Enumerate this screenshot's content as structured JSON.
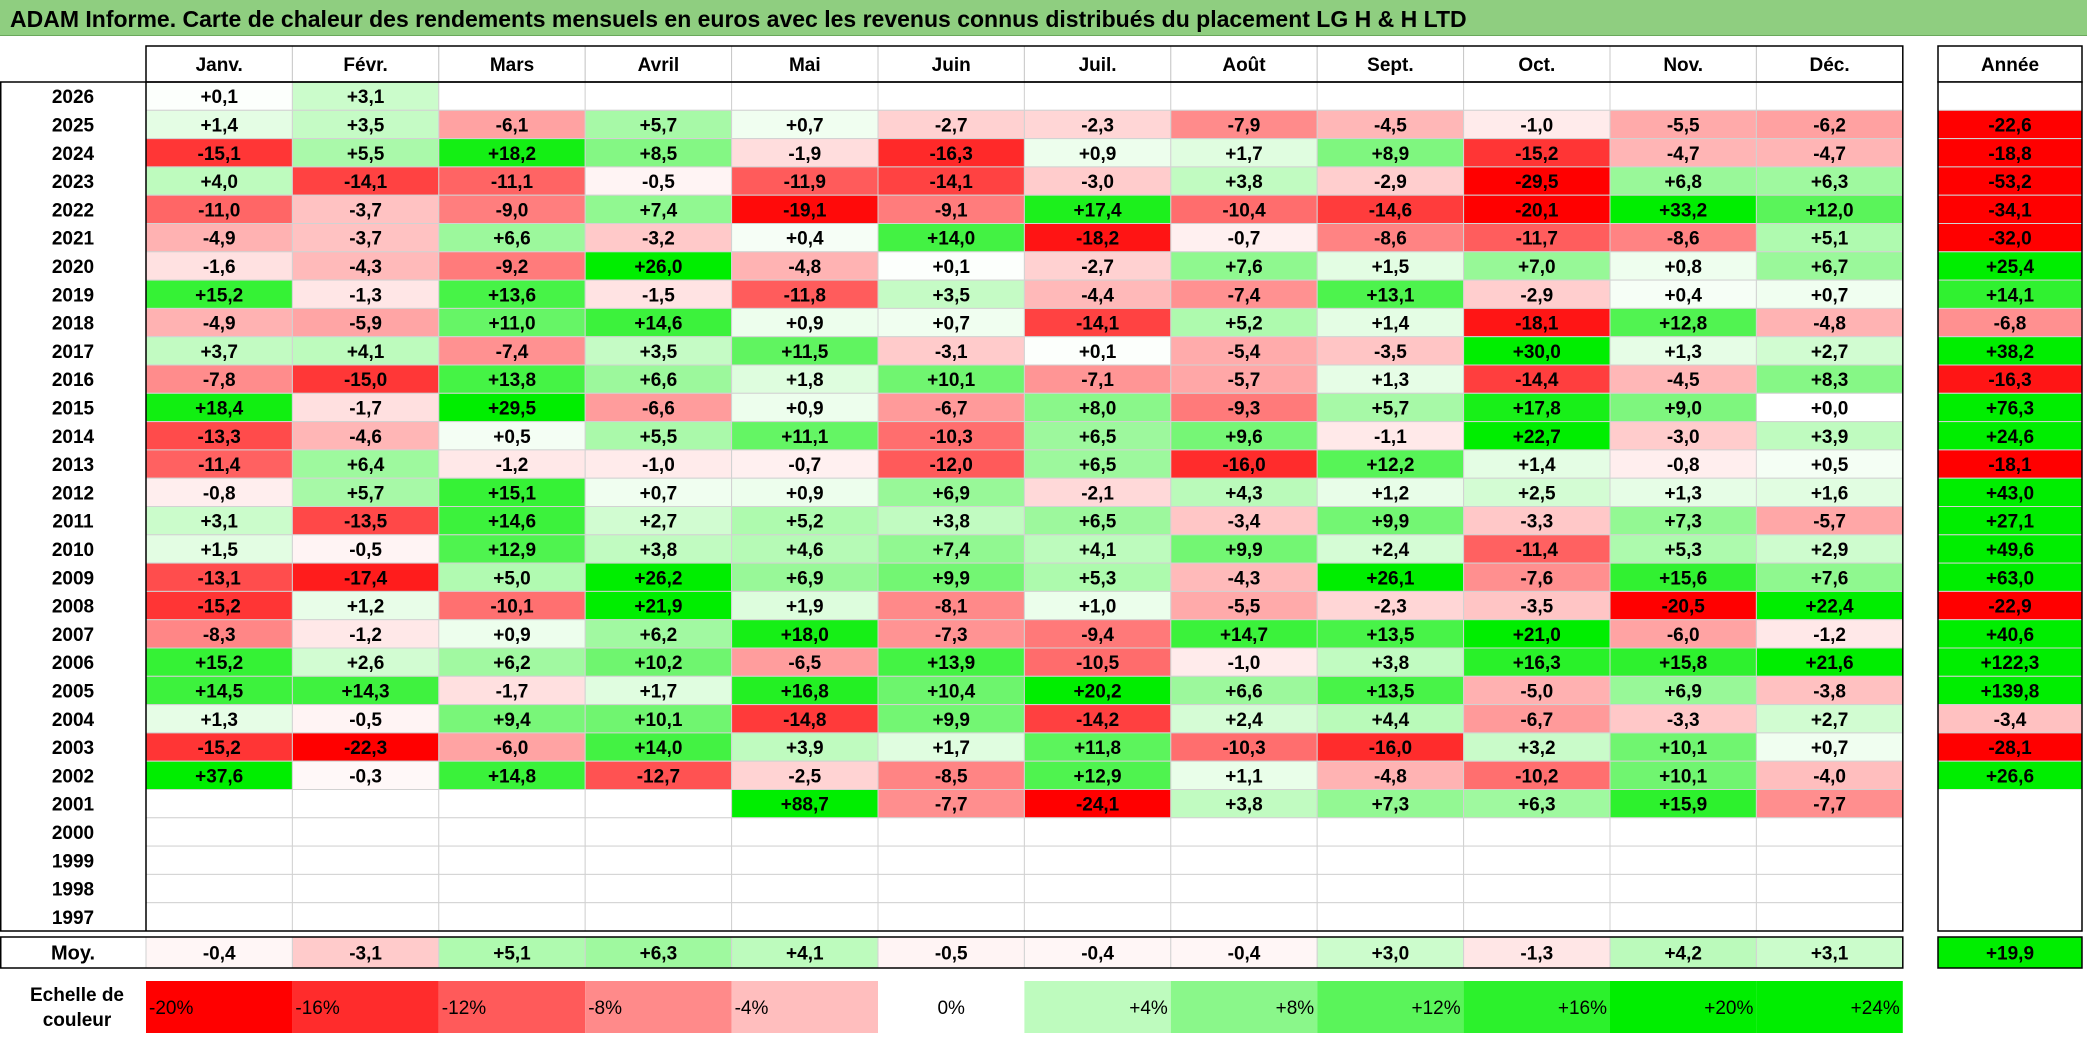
{
  "title": "ADAM Informe. Carte de chaleur des rendements mensuels en euros avec les revenus connus distribués du placement LG H & H LTD",
  "chart_data": {
    "type": "heatmap",
    "months": [
      "Janv.",
      "Févr.",
      "Mars",
      "Avril",
      "Mai",
      "Juin",
      "Juil.",
      "Août",
      "Sept.",
      "Oct.",
      "Nov.",
      "Déc."
    ],
    "year_header": "Année",
    "rows": [
      {
        "year": "2026",
        "values": [
          "+0,1",
          "+3,1",
          null,
          null,
          null,
          null,
          null,
          null,
          null,
          null,
          null,
          null
        ],
        "annual": null
      },
      {
        "year": "2025",
        "values": [
          "+1,4",
          "+3,5",
          "-6,1",
          "+5,7",
          "+0,7",
          "-2,7",
          "-2,3",
          "-7,9",
          "-4,5",
          "-1,0",
          "-5,5",
          "-6,2"
        ],
        "annual": "-22,6"
      },
      {
        "year": "2024",
        "values": [
          "-15,1",
          "+5,5",
          "+18,2",
          "+8,5",
          "-1,9",
          "-16,3",
          "+0,9",
          "+1,7",
          "+8,9",
          "-15,2",
          "-4,7",
          "-4,7"
        ],
        "annual": "-18,8"
      },
      {
        "year": "2023",
        "values": [
          "+4,0",
          "-14,1",
          "-11,1",
          "-0,5",
          "-11,9",
          "-14,1",
          "-3,0",
          "+3,8",
          "-2,9",
          "-29,5",
          "+6,8",
          "+6,3"
        ],
        "annual": "-53,2"
      },
      {
        "year": "2022",
        "values": [
          "-11,0",
          "-3,7",
          "-9,0",
          "+7,4",
          "-19,1",
          "-9,1",
          "+17,4",
          "-10,4",
          "-14,6",
          "-20,1",
          "+33,2",
          "+12,0"
        ],
        "annual": "-34,1"
      },
      {
        "year": "2021",
        "values": [
          "-4,9",
          "-3,7",
          "+6,6",
          "-3,2",
          "+0,4",
          "+14,0",
          "-18,2",
          "-0,7",
          "-8,6",
          "-11,7",
          "-8,6",
          "+5,1"
        ],
        "annual": "-32,0"
      },
      {
        "year": "2020",
        "values": [
          "-1,6",
          "-4,3",
          "-9,2",
          "+26,0",
          "-4,8",
          "+0,1",
          "-2,7",
          "+7,6",
          "+1,5",
          "+7,0",
          "+0,8",
          "+6,7"
        ],
        "annual": "+25,4"
      },
      {
        "year": "2019",
        "values": [
          "+15,2",
          "-1,3",
          "+13,6",
          "-1,5",
          "-11,8",
          "+3,5",
          "-4,4",
          "-7,4",
          "+13,1",
          "-2,9",
          "+0,4",
          "+0,7"
        ],
        "annual": "+14,1"
      },
      {
        "year": "2018",
        "values": [
          "-4,9",
          "-5,9",
          "+11,0",
          "+14,6",
          "+0,9",
          "+0,7",
          "-14,1",
          "+5,2",
          "+1,4",
          "-18,1",
          "+12,8",
          "-4,8"
        ],
        "annual": "-6,8"
      },
      {
        "year": "2017",
        "values": [
          "+3,7",
          "+4,1",
          "-7,4",
          "+3,5",
          "+11,5",
          "-3,1",
          "+0,1",
          "-5,4",
          "-3,5",
          "+30,0",
          "+1,3",
          "+2,7"
        ],
        "annual": "+38,2"
      },
      {
        "year": "2016",
        "values": [
          "-7,8",
          "-15,0",
          "+13,8",
          "+6,6",
          "+1,8",
          "+10,1",
          "-7,1",
          "-5,7",
          "+1,3",
          "-14,4",
          "-4,5",
          "+8,3"
        ],
        "annual": "-16,3"
      },
      {
        "year": "2015",
        "values": [
          "+18,4",
          "-1,7",
          "+29,5",
          "-6,6",
          "+0,9",
          "-6,7",
          "+8,0",
          "-9,3",
          "+5,7",
          "+17,8",
          "+9,0",
          "+0,0"
        ],
        "annual": "+76,3"
      },
      {
        "year": "2014",
        "values": [
          "-13,3",
          "-4,6",
          "+0,5",
          "+5,5",
          "+11,1",
          "-10,3",
          "+6,5",
          "+9,6",
          "-1,1",
          "+22,7",
          "-3,0",
          "+3,9"
        ],
        "annual": "+24,6"
      },
      {
        "year": "2013",
        "values": [
          "-11,4",
          "+6,4",
          "-1,2",
          "-1,0",
          "-0,7",
          "-12,0",
          "+6,5",
          "-16,0",
          "+12,2",
          "+1,4",
          "-0,8",
          "+0,5"
        ],
        "annual": "-18,1"
      },
      {
        "year": "2012",
        "values": [
          "-0,8",
          "+5,7",
          "+15,1",
          "+0,7",
          "+0,9",
          "+6,9",
          "-2,1",
          "+4,3",
          "+1,2",
          "+2,5",
          "+1,3",
          "+1,6"
        ],
        "annual": "+43,0"
      },
      {
        "year": "2011",
        "values": [
          "+3,1",
          "-13,5",
          "+14,6",
          "+2,7",
          "+5,2",
          "+3,8",
          "+6,5",
          "-3,4",
          "+9,9",
          "-3,3",
          "+7,3",
          "-5,7"
        ],
        "annual": "+27,1"
      },
      {
        "year": "2010",
        "values": [
          "+1,5",
          "-0,5",
          "+12,9",
          "+3,8",
          "+4,6",
          "+7,4",
          "+4,1",
          "+9,9",
          "+2,4",
          "-11,4",
          "+5,3",
          "+2,9"
        ],
        "annual": "+49,6"
      },
      {
        "year": "2009",
        "values": [
          "-13,1",
          "-17,4",
          "+5,0",
          "+26,2",
          "+6,9",
          "+9,9",
          "+5,3",
          "-4,3",
          "+26,1",
          "-7,6",
          "+15,6",
          "+7,6"
        ],
        "annual": "+63,0"
      },
      {
        "year": "2008",
        "values": [
          "-15,2",
          "+1,2",
          "-10,1",
          "+21,9",
          "+1,9",
          "-8,1",
          "+1,0",
          "-5,5",
          "-2,3",
          "-3,5",
          "-20,5",
          "+22,4"
        ],
        "annual": "-22,9"
      },
      {
        "year": "2007",
        "values": [
          "-8,3",
          "-1,2",
          "+0,9",
          "+6,2",
          "+18,0",
          "-7,3",
          "-9,4",
          "+14,7",
          "+13,5",
          "+21,0",
          "-6,0",
          "-1,2"
        ],
        "annual": "+40,6"
      },
      {
        "year": "2006",
        "values": [
          "+15,2",
          "+2,6",
          "+6,2",
          "+10,2",
          "-6,5",
          "+13,9",
          "-10,5",
          "-1,0",
          "+3,8",
          "+16,3",
          "+15,8",
          "+21,6"
        ],
        "annual": "+122,3"
      },
      {
        "year": "2005",
        "values": [
          "+14,5",
          "+14,3",
          "-1,7",
          "+1,7",
          "+16,8",
          "+10,4",
          "+20,2",
          "+6,6",
          "+13,5",
          "-5,0",
          "+6,9",
          "-3,8"
        ],
        "annual": "+139,8"
      },
      {
        "year": "2004",
        "values": [
          "+1,3",
          "-0,5",
          "+9,4",
          "+10,1",
          "-14,8",
          "+9,9",
          "-14,2",
          "+2,4",
          "+4,4",
          "-6,7",
          "-3,3",
          "+2,7"
        ],
        "annual": "-3,4"
      },
      {
        "year": "2003",
        "values": [
          "-15,2",
          "-22,3",
          "-6,0",
          "+14,0",
          "+3,9",
          "+1,7",
          "+11,8",
          "-10,3",
          "-16,0",
          "+3,2",
          "+10,1",
          "+0,7"
        ],
        "annual": "-28,1"
      },
      {
        "year": "2002",
        "values": [
          "+37,6",
          "-0,3",
          "+14,8",
          "-12,7",
          "-2,5",
          "-8,5",
          "+12,9",
          "+1,1",
          "-4,8",
          "-10,2",
          "+10,1",
          "-4,0"
        ],
        "annual": "+26,6"
      },
      {
        "year": "2001",
        "values": [
          null,
          null,
          null,
          null,
          "+88,7",
          "-7,7",
          "-24,1",
          "+3,8",
          "+7,3",
          "+6,3",
          "+15,9",
          "-7,7"
        ],
        "annual": null
      },
      {
        "year": "2000",
        "values": [
          null,
          null,
          null,
          null,
          null,
          null,
          null,
          null,
          null,
          null,
          null,
          null
        ],
        "annual": null
      },
      {
        "year": "1999",
        "values": [
          null,
          null,
          null,
          null,
          null,
          null,
          null,
          null,
          null,
          null,
          null,
          null
        ],
        "annual": null
      },
      {
        "year": "1998",
        "values": [
          null,
          null,
          null,
          null,
          null,
          null,
          null,
          null,
          null,
          null,
          null,
          null
        ],
        "annual": null
      },
      {
        "year": "1997",
        "values": [
          null,
          null,
          null,
          null,
          null,
          null,
          null,
          null,
          null,
          null,
          null,
          null
        ],
        "annual": null
      }
    ],
    "average": {
      "label": "Moy.",
      "values": [
        "-0,4",
        "-3,1",
        "+5,1",
        "+6,3",
        "+4,1",
        "-0,5",
        "-0,4",
        "-0,4",
        "+3,0",
        "-1,3",
        "+4,2",
        "+3,1"
      ],
      "annual": "+19,9"
    },
    "scale": {
      "label_line1": "Echelle de",
      "label_line2": "couleur",
      "stops": [
        "-20%",
        "-16%",
        "-12%",
        "-8%",
        "-4%",
        "0%",
        "+4%",
        "+8%",
        "+12%",
        "+16%",
        "+20%",
        "+24%"
      ]
    },
    "colors": {
      "neg_max": "#ff0000",
      "pos_max": "#00ee00",
      "neutral": "#ffffff"
    }
  }
}
